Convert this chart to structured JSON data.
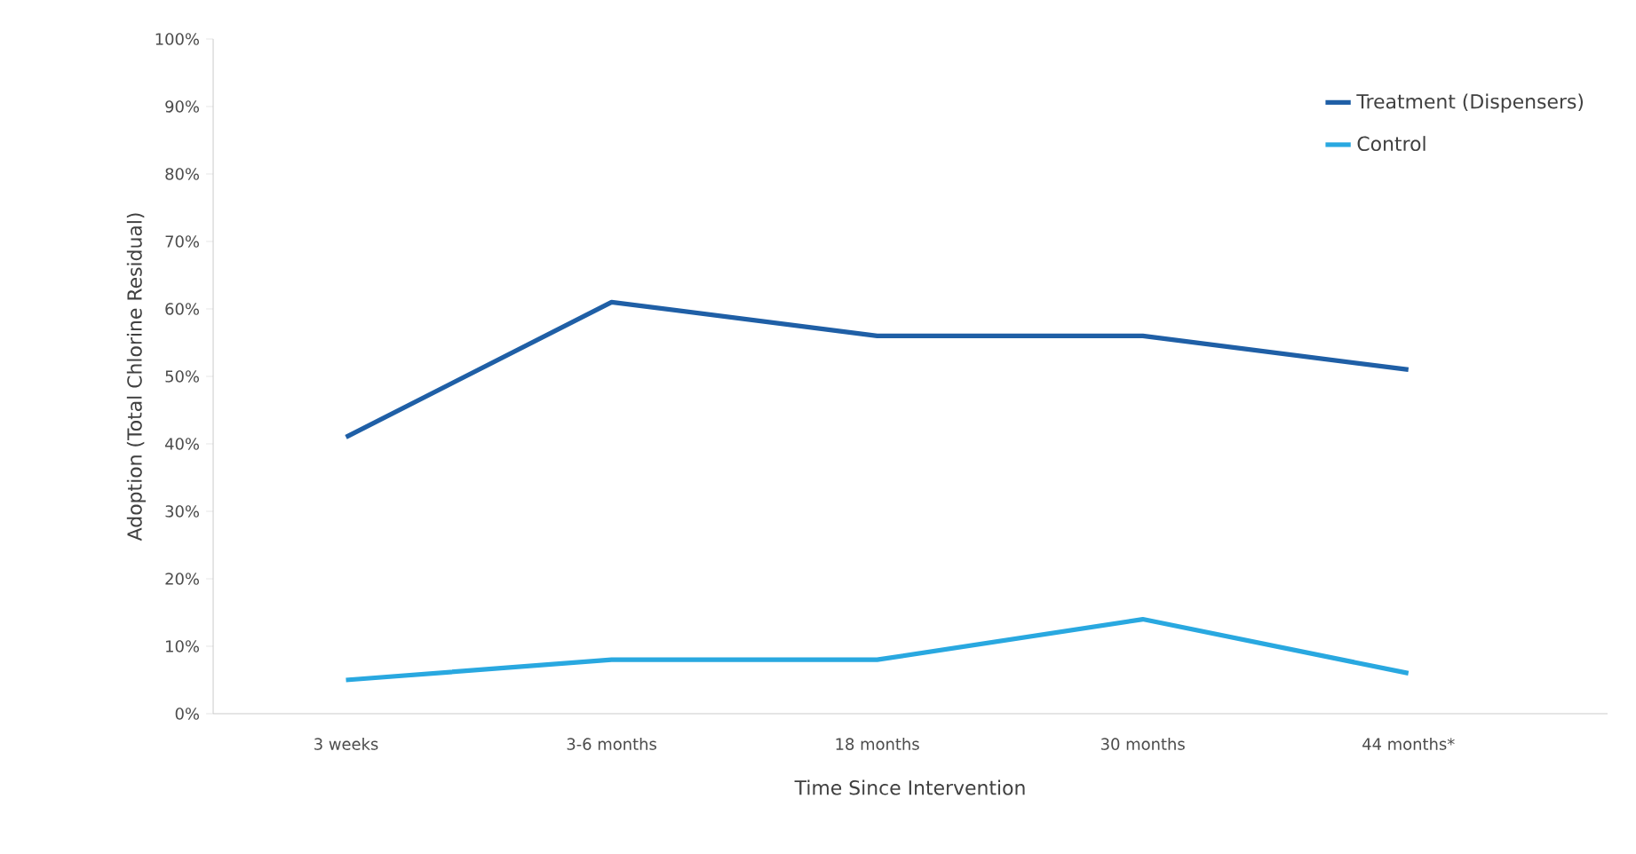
{
  "chart_data": {
    "type": "line",
    "ylabel": "Adoption (Total Chlorine Residual)",
    "xlabel": "Time Since Intervention",
    "categories": [
      "3 weeks",
      "3-6 months",
      "18 months",
      "30 months",
      "44 months*"
    ],
    "series": [
      {
        "name": "Treatment (Dispensers)",
        "color": "#1f5fa6",
        "values": [
          41,
          61,
          56,
          56,
          51
        ]
      },
      {
        "name": "Control",
        "color": "#29a8e0",
        "values": [
          5,
          8,
          8,
          14,
          6
        ]
      }
    ],
    "ylim": [
      0,
      100
    ],
    "yticks": [
      {
        "value": 0,
        "label": "0%"
      },
      {
        "value": 10,
        "label": "10%"
      },
      {
        "value": 20,
        "label": "20%"
      },
      {
        "value": 30,
        "label": "30%"
      },
      {
        "value": 40,
        "label": "40%"
      },
      {
        "value": 50,
        "label": "50%"
      },
      {
        "value": 60,
        "label": "60%"
      },
      {
        "value": 70,
        "label": "70%"
      },
      {
        "value": 80,
        "label": "80%"
      },
      {
        "value": 90,
        "label": "90%"
      },
      {
        "value": 100,
        "label": "100%"
      }
    ],
    "legend": "top right",
    "marker": "none",
    "line_style": "solid",
    "grid": false
  }
}
